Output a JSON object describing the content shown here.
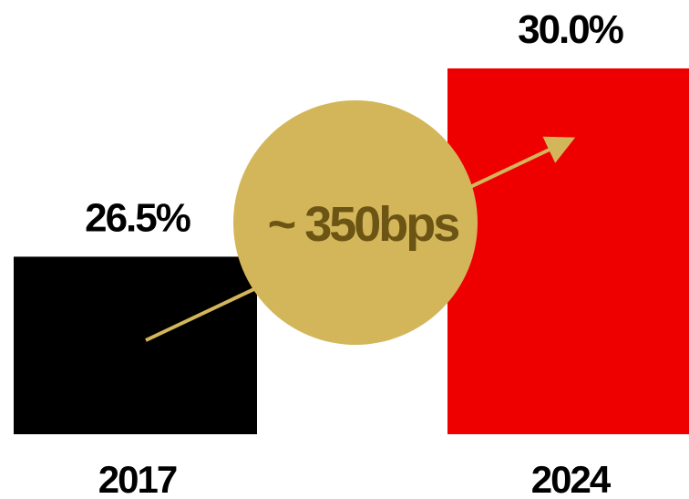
{
  "chart_data": {
    "type": "bar",
    "categories": [
      "2017",
      "2024"
    ],
    "values": [
      26.5,
      30.0
    ],
    "value_labels": [
      "26.5%",
      "30.0%"
    ],
    "bar_colors": [
      "#000000",
      "#ef0000"
    ],
    "ylim": [
      23.2,
      30.0
    ],
    "grid": false,
    "legend": "none",
    "annotation": {
      "text": "~ 350bps",
      "badge_color": "#d4b65a",
      "text_color": "#6b5414",
      "arrow_color": "#d4b65a"
    }
  }
}
